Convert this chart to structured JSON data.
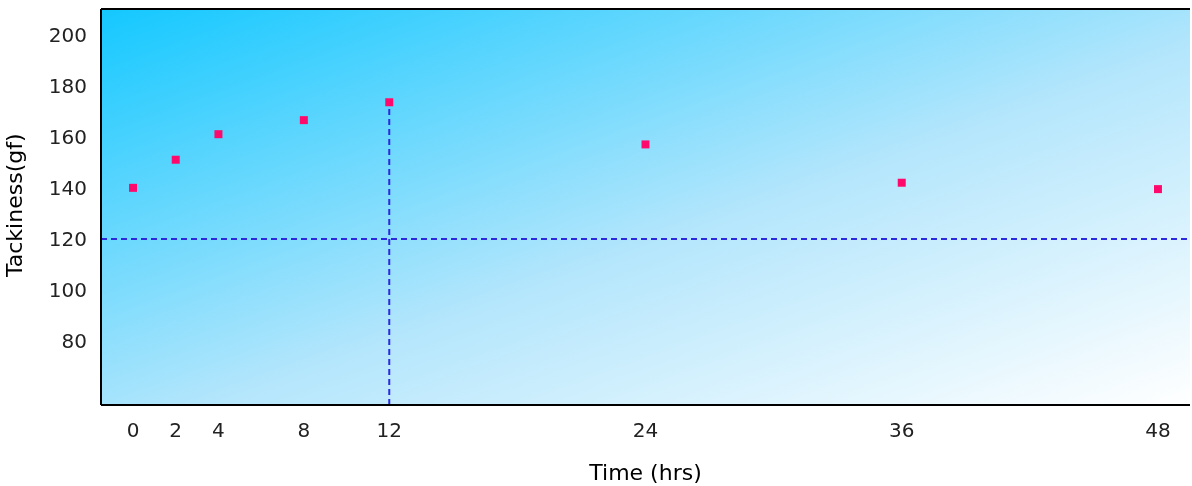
{
  "chart_data": {
    "type": "scatter",
    "xlabel": "Time (hrs)",
    "ylabel": "Tackiness(gf)",
    "x": [
      0,
      2,
      4,
      8,
      12,
      24,
      36,
      48
    ],
    "series": [
      {
        "color": "#ff0a6c",
        "values": [
          140,
          151,
          161,
          166.5,
          173.5,
          157,
          142,
          139.5
        ]
      }
    ],
    "xlim": [
      -1.5,
      49.5
    ],
    "xticks": [
      0,
      2,
      4,
      8,
      12,
      24,
      36,
      48
    ],
    "ylim": [
      55,
      210
    ],
    "yticks": [
      80,
      100,
      120,
      140,
      160,
      180,
      200
    ],
    "marker": "square",
    "grid": false,
    "legend": false,
    "ref_lines": [
      {
        "axis": "y",
        "value": 120,
        "color": "#2b2bdc",
        "line_style": "dashed"
      },
      {
        "axis": "x",
        "value": 12,
        "color": "#2b2bdc",
        "line_style": "dashed"
      }
    ]
  }
}
